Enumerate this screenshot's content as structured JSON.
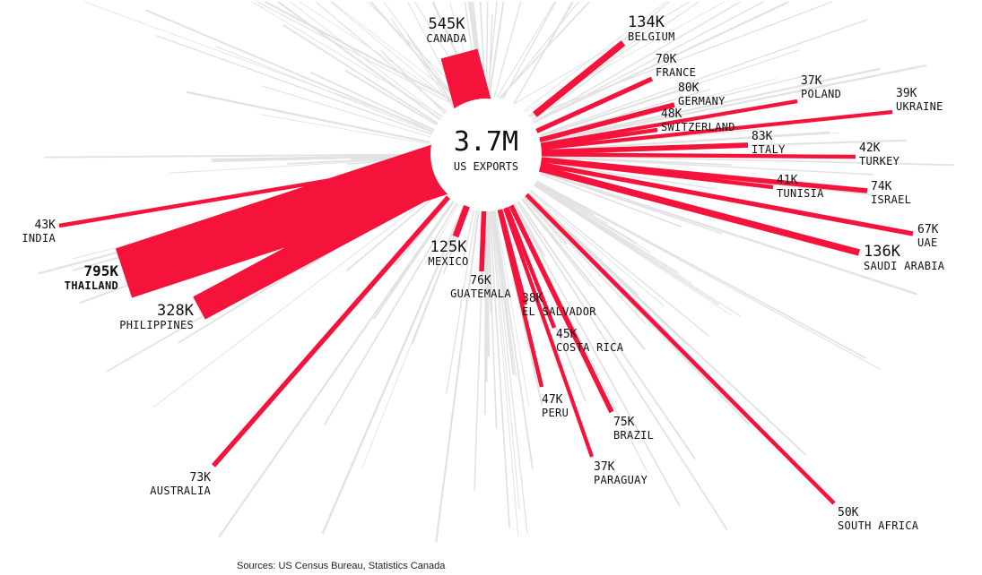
{
  "total": {
    "value": "3.7M",
    "label": "US EXPORTS"
  },
  "source": "Sources: US Census Bureau, Statistics Canada",
  "colors": {
    "highlight": "#f5133c",
    "background_line": "#e2e2e2",
    "text": "#111111"
  },
  "chart_data": {
    "type": "radial-bar",
    "center_total": "3.7M",
    "center_label": "US EXPORTS",
    "unit": "K",
    "series": [
      {
        "country": "CANADA",
        "value": 545,
        "value_label": "545K"
      },
      {
        "country": "BELGIUM",
        "value": 134,
        "value_label": "134K"
      },
      {
        "country": "FRANCE",
        "value": 70,
        "value_label": "70K"
      },
      {
        "country": "GERMANY",
        "value": 80,
        "value_label": "80K"
      },
      {
        "country": "POLAND",
        "value": 37,
        "value_label": "37K"
      },
      {
        "country": "UKRAINE",
        "value": 39,
        "value_label": "39K"
      },
      {
        "country": "SWITZERLAND",
        "value": 48,
        "value_label": "48K"
      },
      {
        "country": "ITALY",
        "value": 83,
        "value_label": "83K"
      },
      {
        "country": "TURKEY",
        "value": 42,
        "value_label": "42K"
      },
      {
        "country": "TUNISIA",
        "value": 41,
        "value_label": "41K"
      },
      {
        "country": "ISRAEL",
        "value": 74,
        "value_label": "74K"
      },
      {
        "country": "UAE",
        "value": 67,
        "value_label": "67K"
      },
      {
        "country": "SAUDI ARABIA",
        "value": 136,
        "value_label": "136K"
      },
      {
        "country": "SOUTH AFRICA",
        "value": 50,
        "value_label": "50K"
      },
      {
        "country": "PARAGUAY",
        "value": 37,
        "value_label": "37K"
      },
      {
        "country": "BRAZIL",
        "value": 75,
        "value_label": "75K"
      },
      {
        "country": "PERU",
        "value": 47,
        "value_label": "47K"
      },
      {
        "country": "COSTA RICA",
        "value": 45,
        "value_label": "45K"
      },
      {
        "country": "EL SALVADOR",
        "value": 38,
        "value_label": "38K"
      },
      {
        "country": "GUATEMALA",
        "value": 76,
        "value_label": "76K"
      },
      {
        "country": "MEXICO",
        "value": 125,
        "value_label": "125K"
      },
      {
        "country": "AUSTRALIA",
        "value": 73,
        "value_label": "73K"
      },
      {
        "country": "PHILIPPINES",
        "value": 328,
        "value_label": "328K"
      },
      {
        "country": "THAILAND",
        "value": 795,
        "value_label": "795K"
      },
      {
        "country": "INDIA",
        "value": 43,
        "value_label": "43K"
      }
    ]
  }
}
